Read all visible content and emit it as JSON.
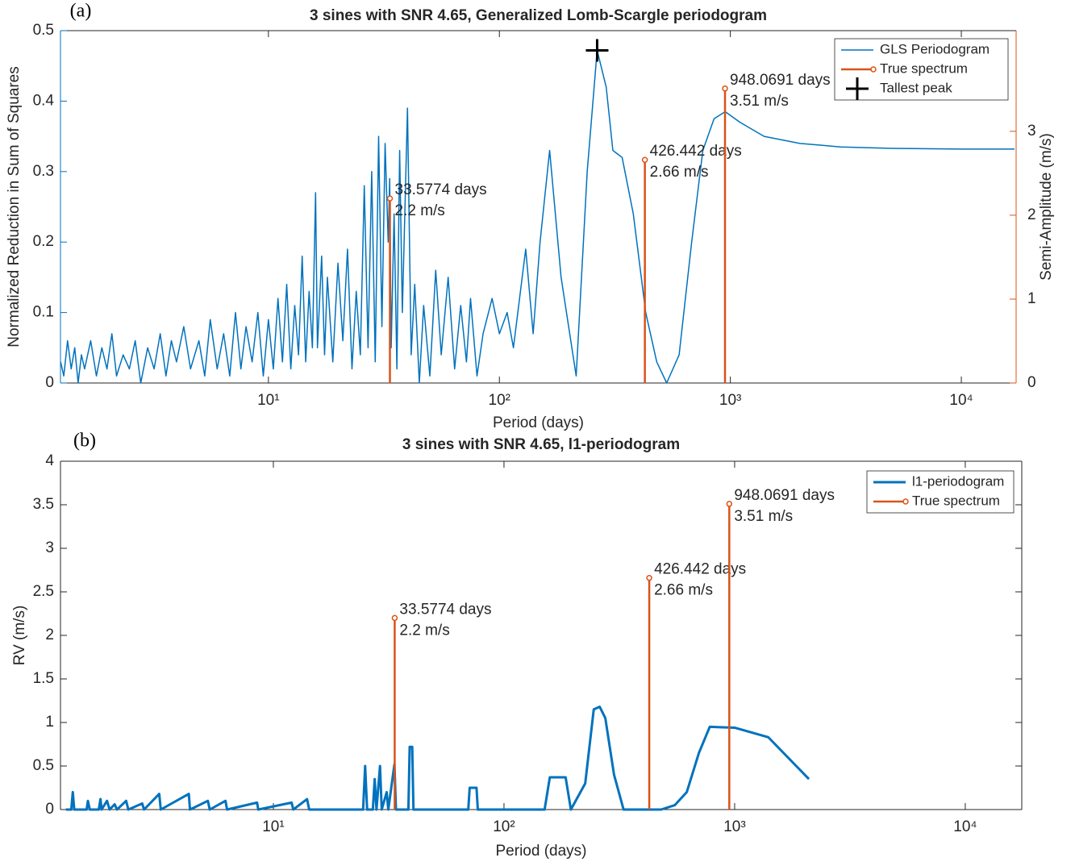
{
  "chart_data": [
    {
      "type": "line",
      "panel_label": "(a)",
      "title": "3 sines with SNR 4.65, Generalized Lomb-Scargle periodogram",
      "x_label": "Period (days)",
      "y_label": "Normalized Reduction in Sum of Squares",
      "y2_label": "Semi-Amplitude (m/s)",
      "x_scale": "log",
      "xlim": [
        1.258,
        17270
      ],
      "xticks": [
        {
          "value": 10,
          "label": "10¹"
        },
        {
          "value": 100,
          "label": "10²"
        },
        {
          "value": 1000,
          "label": "10³"
        },
        {
          "value": 10000,
          "label": "10⁴"
        }
      ],
      "ylim": [
        0,
        0.5
      ],
      "yticks": [
        0,
        0.1,
        0.2,
        0.3,
        0.4,
        0.5
      ],
      "y_color": "#0072bd",
      "y2lim": [
        0,
        4.2
      ],
      "y2ticks": [
        0,
        1,
        2,
        3
      ],
      "y2_color": "#d95319",
      "legend": "upper right",
      "series": [
        {
          "name": "GLS Periodogram",
          "type": "line",
          "color": "#0072bd",
          "width": 1.5,
          "x": [
            1.26,
            1.3,
            1.35,
            1.4,
            1.45,
            1.5,
            1.55,
            1.6,
            1.7,
            1.8,
            1.9,
            2.0,
            2.1,
            2.2,
            2.35,
            2.5,
            2.65,
            2.8,
            3.0,
            3.2,
            3.4,
            3.6,
            3.8,
            4.0,
            4.3,
            4.6,
            5.0,
            5.3,
            5.6,
            6.0,
            6.4,
            6.8,
            7.2,
            7.6,
            8.0,
            8.5,
            9.0,
            9.5,
            10,
            10.5,
            11,
            11.5,
            12,
            12.5,
            13,
            13.5,
            14,
            14.5,
            15,
            15.5,
            16,
            16.3,
            17,
            17.5,
            18,
            19,
            20,
            21,
            22,
            23,
            24,
            25,
            26,
            27,
            28,
            29,
            30,
            31,
            32,
            33,
            33.5,
            34,
            35,
            36,
            37,
            38,
            40,
            41.5,
            43,
            45,
            47,
            50,
            53,
            56,
            60,
            64,
            68,
            72,
            75,
            80,
            85,
            93,
            100,
            108,
            115,
            130,
            140,
            150,
            165,
            185,
            215,
            240,
            265,
            290,
            310,
            340,
            380,
            430,
            480,
            530,
            600,
            680,
            760,
            850,
            950,
            1100,
            1400,
            2000,
            3000,
            5000,
            10000,
            17000
          ],
          "values": [
            0.03,
            0.01,
            0.06,
            0.02,
            0.05,
            0,
            0.04,
            0.02,
            0.06,
            0.01,
            0.05,
            0.02,
            0.07,
            0.01,
            0.04,
            0.02,
            0.06,
            0,
            0.05,
            0.02,
            0.07,
            0.01,
            0.06,
            0.03,
            0.08,
            0.02,
            0.06,
            0.01,
            0.09,
            0.02,
            0.07,
            0.01,
            0.1,
            0.02,
            0.08,
            0.03,
            0.1,
            0.01,
            0.09,
            0.02,
            0.12,
            0.03,
            0.14,
            0.02,
            0.11,
            0.04,
            0.18,
            0.03,
            0.13,
            0.05,
            0.27,
            0.05,
            0.18,
            0.04,
            0.15,
            0.03,
            0.17,
            0.06,
            0.19,
            0.02,
            0.13,
            0.04,
            0.28,
            0.05,
            0.3,
            0.03,
            0.35,
            0.08,
            0.34,
            0.2,
            0.29,
            0.05,
            0.24,
            0.02,
            0.33,
            0.1,
            0.39,
            0.04,
            0.14,
            0,
            0.11,
            0.01,
            0.16,
            0.04,
            0.15,
            0.02,
            0.11,
            0.03,
            0.12,
            0.01,
            0.07,
            0.12,
            0.07,
            0.1,
            0.05,
            0.19,
            0.07,
            0.2,
            0.33,
            0.15,
            0.01,
            0.3,
            0.472,
            0.42,
            0.33,
            0.32,
            0.24,
            0.1,
            0.03,
            0,
            0.04,
            0.2,
            0.33,
            0.375,
            0.385,
            0.37,
            0.35,
            0.34,
            0.335,
            0.333,
            0.332,
            0.332
          ]
        },
        {
          "name": "True spectrum",
          "type": "stem",
          "axis": "y2",
          "color": "#d95319",
          "x": [
            33.5774,
            426.442,
            948.0691
          ],
          "values": [
            2.2,
            2.66,
            3.51
          ],
          "x_labels": [
            "33.5774 days",
            "426.442 days",
            "948.0691 days"
          ],
          "value_labels": [
            "2.2 m/s",
            "2.66 m/s",
            "3.51 m/s"
          ]
        },
        {
          "name": "Tallest peak",
          "type": "marker",
          "color": "#000000",
          "x": [
            265
          ],
          "values": [
            0.472
          ]
        }
      ]
    },
    {
      "type": "line",
      "panel_label": "(b)",
      "title": "3 sines with SNR 4.65, l1-periodogram",
      "x_label": "Period (days)",
      "y_label": "RV (m/s)",
      "x_scale": "log",
      "xlim": [
        1.194,
        17580
      ],
      "xticks": [
        {
          "value": 10,
          "label": "10¹"
        },
        {
          "value": 100,
          "label": "10²"
        },
        {
          "value": 1000,
          "label": "10³"
        },
        {
          "value": 10000,
          "label": "10⁴"
        }
      ],
      "ylim": [
        0,
        4
      ],
      "yticks": [
        0,
        0.5,
        1,
        1.5,
        2,
        2.5,
        3,
        3.5,
        4
      ],
      "legend": "upper right",
      "series": [
        {
          "name": "l1-periodogram",
          "type": "line",
          "color": "#0072bd",
          "width": 3,
          "x": [
            1.26,
            1.33,
            1.35,
            1.37,
            1.55,
            1.57,
            1.6,
            1.75,
            1.78,
            1.8,
            1.9,
            1.95,
            2.05,
            2.1,
            2.3,
            2.35,
            2.7,
            2.75,
            3.2,
            3.25,
            4.3,
            4.35,
            5.2,
            5.3,
            6.2,
            6.3,
            8.5,
            8.6,
            12,
            12.2,
            14,
            14.3,
            24.5,
            25,
            25.5,
            27,
            27.5,
            28,
            29,
            29.5,
            31,
            31.5,
            33.5,
            34,
            38.5,
            39,
            40,
            40.5,
            70,
            71,
            76,
            77,
            150,
            158,
            185,
            195,
            225,
            245,
            260,
            275,
            300,
            330,
            480,
            550,
            620,
            700,
            780,
            1000,
            1400,
            2100
          ],
          "values": [
            0,
            0,
            0.2,
            0,
            0,
            0.1,
            0,
            0,
            0.12,
            0,
            0.1,
            0,
            0.06,
            0,
            0.1,
            0,
            0.07,
            0,
            0.18,
            0,
            0.18,
            0,
            0.1,
            0,
            0.1,
            0,
            0.08,
            0,
            0.08,
            0,
            0.12,
            0,
            0,
            0.5,
            0,
            0,
            0.35,
            0,
            0.5,
            0,
            0.2,
            0,
            0.52,
            0,
            0,
            0.72,
            0.72,
            0,
            0,
            0.25,
            0.25,
            0,
            0,
            0.37,
            0.37,
            0,
            0.3,
            1.15,
            1.18,
            1.05,
            0.4,
            0,
            0,
            0.05,
            0.2,
            0.65,
            0.95,
            0.94,
            0.83,
            0.35
          ]
        },
        {
          "name": "True spectrum",
          "type": "stem",
          "color": "#d95319",
          "x": [
            33.5774,
            426.442,
            948.0691
          ],
          "values": [
            2.2,
            2.66,
            3.51
          ],
          "x_labels": [
            "33.5774 days",
            "426.442 days",
            "948.0691 days"
          ],
          "value_labels": [
            "2.2 m/s",
            "2.66 m/s",
            "3.51 m/s"
          ]
        }
      ]
    }
  ]
}
